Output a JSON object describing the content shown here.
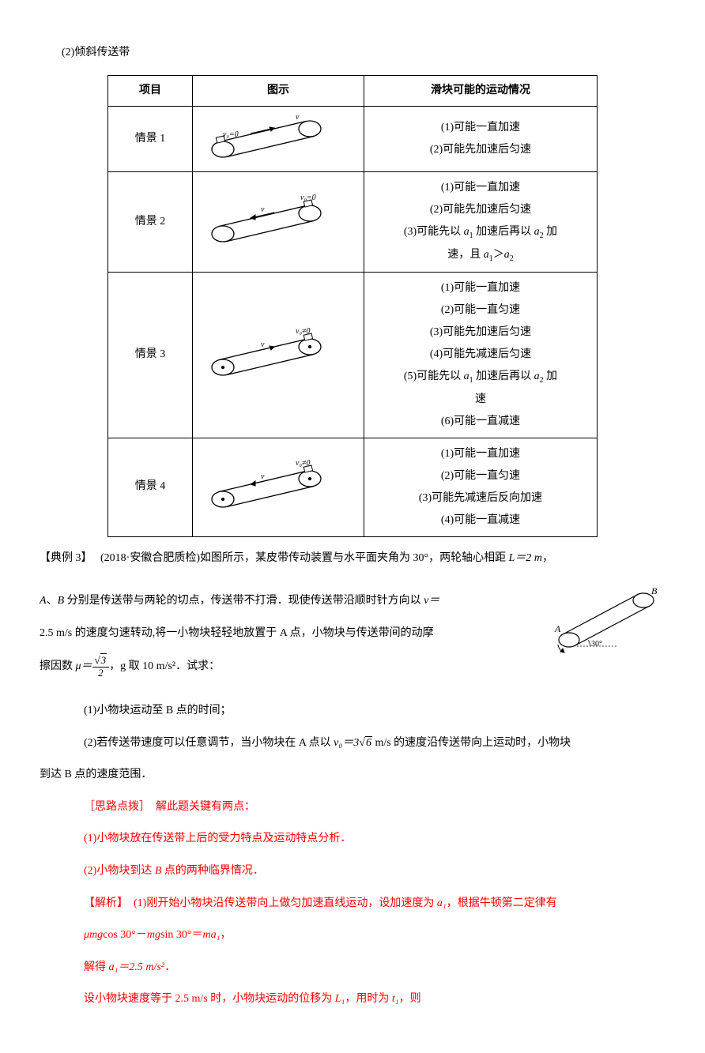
{
  "intro": "(2)倾斜传送带",
  "table": {
    "headers": [
      "项目",
      "图示",
      "滑块可能的运动情况"
    ],
    "rows": [
      {
        "name": "情景 1",
        "motion_html": "(1)可能一直加速<br>(2)可能先加速后匀速"
      },
      {
        "name": "情景 2",
        "motion_html": "(1)可能一直加速<br>(2)可能先加速后匀速<br>(3)可能先以 <span class='ital'>a</span><sub>1</sub> 加速后再以 <span class='ital'>a</span><sub>2</sub> 加<br>速，且 <span class='ital'>a</span><sub>1</sub>＞<span class='ital'>a</span><sub>2</sub>"
      },
      {
        "name": "情景 3",
        "motion_html": "(1)可能一直加速<br>(2)可能一直匀速<br>(3)可能先加速后匀速<br>(4)可能先减速后匀速<br>(5)可能先以 <span class='ital'>a</span><sub>1</sub> 加速后再以 <span class='ital'>a</span><sub>2</sub> 加<br>速<br>(6)可能一直减速"
      },
      {
        "name": "情景 4",
        "motion_html": "(1)可能一直加速<br>(2)可能一直匀速<br>(3)可能先减速后反向加速<br>(4)可能一直减速"
      }
    ]
  },
  "example": {
    "label": "【典例 3】",
    "source": "(2018·安徽合肥质检)",
    "body1": "如图所示，某皮带传动装置与水平面夹角为 30°，两轮轴心相距 ",
    "L_expr": "L＝2 m",
    "body2a": "，",
    "line2a": "A、B 分别是传送带与两轮的切点，传送带不打滑．现使传送带沿顺时针方向以 ",
    "v_expr": "v＝",
    "line2b": "2.5 m/s 的速度匀速转动,将一小物块轻轻地放置于 A 点，小物块与传送带间的动摩",
    "mu_prefix": "擦因数 ",
    "mu_sym": "μ＝",
    "g_expr": "，g 取 10 m/s²．试求：",
    "q1": "(1)小物块运动至 B 点的时间；",
    "q2a": "(2)若传送带速度可以任意调节，当小物块在 A 点以 ",
    "v0_sym": "v₀＝3",
    "sqrt6": "6",
    "q2b": " m/s 的速度沿传送带向上运动时，小物块",
    "q2c": "到达 B 点的速度范围．"
  },
  "hints": {
    "title": "［思路点拨］　解此题关键有两点：",
    "h1": "(1)小物块放在传送带上后的受力特点及运动特点分析．",
    "h2": "(2)小物块到达 B 点的两种临界情况．"
  },
  "solution": {
    "label": "【解析】",
    "s1a": "(1)刚开始小物块沿传送带向上做匀加速直线运动，设加速度为 ",
    "a1_sym": "a₁",
    "s1b": "，根据牛顿第二定律有",
    "eq1_a": "μmg",
    "eq1_b": "cos 30°－",
    "eq1_c": "mg",
    "eq1_d": "sin 30°＝",
    "eq1_e": "ma₁",
    "eq1_f": "，",
    "s2a": "解得 ",
    "s2b": "a₁＝2.5 m/s²．",
    "s3a": "设小物块速度等于 2.5 m/s 时，小物块运动的位移为 ",
    "L1_sym": "L₁",
    "s3b": "，用时为 ",
    "t1_sym": "t₁",
    "s3c": "，则"
  },
  "svg": {
    "belt_fill": "#ffffff",
    "belt_stroke": "#000000",
    "arrow_color": "#000000"
  }
}
